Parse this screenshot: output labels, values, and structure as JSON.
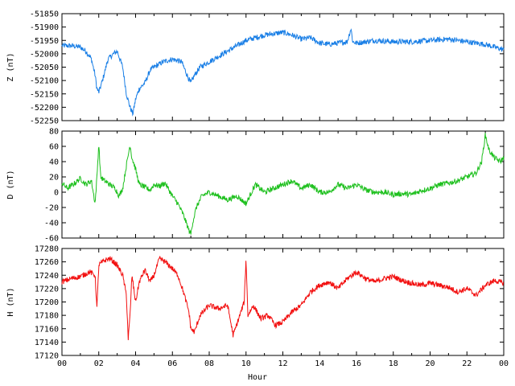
{
  "chart_data": [
    {
      "type": "line",
      "ylabel": "Z (nT)",
      "ylim": [
        -52250,
        -51850
      ],
      "yticks": [
        -51850,
        -51900,
        -51950,
        -52000,
        -52050,
        -52100,
        -52150,
        -52200,
        -52250
      ],
      "xlim": [
        0,
        24
      ],
      "color": "#1a7fe6",
      "series": [
        {
          "x": [
            0,
            0.5,
            1,
            1.3,
            1.6,
            1.8,
            1.9,
            2.0,
            2.2,
            2.5,
            2.8,
            3.0,
            3.3,
            3.5,
            3.7,
            3.85,
            4.0,
            4.2,
            4.5,
            4.8,
            5.0,
            5.5,
            6.0,
            6.5,
            6.8,
            7.0,
            7.2,
            7.5,
            8,
            8.5,
            9,
            9.5,
            10,
            10.5,
            11,
            11.5,
            12,
            12.5,
            13,
            13.5,
            14,
            14.5,
            15,
            15.5,
            15.7,
            15.8,
            16,
            16.5,
            17,
            18,
            19,
            20,
            21,
            22,
            23,
            23.5,
            24
          ],
          "y": [
            -51970,
            -51970,
            -51975,
            -51990,
            -52020,
            -52080,
            -52130,
            -52145,
            -52100,
            -52020,
            -52000,
            -51990,
            -52050,
            -52150,
            -52200,
            -52225,
            -52170,
            -52130,
            -52110,
            -52060,
            -52050,
            -52030,
            -52020,
            -52030,
            -52080,
            -52110,
            -52080,
            -52050,
            -52030,
            -52010,
            -51990,
            -51970,
            -51950,
            -51940,
            -51930,
            -51925,
            -51920,
            -51930,
            -51945,
            -51940,
            -51960,
            -51965,
            -51960,
            -51955,
            -51905,
            -51955,
            -51960,
            -51955,
            -51950,
            -51955,
            -51955,
            -51950,
            -51945,
            -51955,
            -51965,
            -51975,
            -51985
          ]
        }
      ]
    },
    {
      "type": "line",
      "ylabel": "D (nT)",
      "ylim": [
        -60,
        80
      ],
      "yticks": [
        80,
        60,
        40,
        20,
        0,
        -20,
        -40,
        -60
      ],
      "xlim": [
        0,
        24
      ],
      "color": "#1ec01e",
      "series": [
        {
          "x": [
            0,
            0.3,
            0.6,
            1.0,
            1.3,
            1.6,
            1.8,
            1.9,
            2.0,
            2.1,
            2.3,
            2.6,
            2.9,
            3.1,
            3.3,
            3.5,
            3.7,
            3.8,
            3.9,
            4.0,
            4.2,
            4.4,
            4.6,
            4.8,
            5.0,
            5.3,
            5.6,
            6.0,
            6.3,
            6.6,
            6.9,
            7.0,
            7.1,
            7.3,
            7.6,
            8,
            8.5,
            9,
            9.5,
            10,
            10.5,
            11,
            11.5,
            12,
            12.5,
            13,
            13.5,
            14,
            14.5,
            15,
            15.5,
            16,
            16.5,
            17,
            17.5,
            18,
            18.5,
            19,
            19.5,
            20,
            20.5,
            21,
            21.5,
            22,
            22.5,
            22.8,
            23.0,
            23.2,
            23.5,
            23.8,
            24
          ],
          "y": [
            12,
            5,
            10,
            18,
            10,
            15,
            -15,
            20,
            64,
            20,
            15,
            10,
            5,
            -5,
            5,
            35,
            62,
            45,
            38,
            30,
            10,
            8,
            5,
            3,
            10,
            8,
            12,
            -5,
            -15,
            -30,
            -50,
            -55,
            -40,
            -20,
            -5,
            0,
            -5,
            -10,
            -5,
            -15,
            10,
            0,
            5,
            10,
            15,
            5,
            10,
            0,
            0,
            10,
            5,
            10,
            3,
            0,
            0,
            -3,
            -2,
            -3,
            2,
            5,
            10,
            12,
            15,
            20,
            25,
            40,
            75,
            55,
            45,
            40,
            45
          ]
        }
      ]
    },
    {
      "type": "line",
      "ylabel": "H (nT)",
      "ylim": [
        17120,
        17280
      ],
      "yticks": [
        17280,
        17260,
        17240,
        17220,
        17200,
        17180,
        17160,
        17140,
        17120
      ],
      "xlim": [
        0,
        24
      ],
      "xticks": [
        "00",
        "02",
        "04",
        "06",
        "08",
        "10",
        "12",
        "14",
        "16",
        "18",
        "20",
        "22",
        "00"
      ],
      "xlabel": "Hour",
      "color": "#f20f0f",
      "series": [
        {
          "x": [
            0,
            0.5,
            1.0,
            1.5,
            1.8,
            1.9,
            2.0,
            2.3,
            2.6,
            3.0,
            3.3,
            3.5,
            3.6,
            3.7,
            3.8,
            4.0,
            4.2,
            4.5,
            4.8,
            5.0,
            5.3,
            5.6,
            6.0,
            6.3,
            6.6,
            6.9,
            7.0,
            7.2,
            7.5,
            8,
            8.5,
            9,
            9.3,
            9.6,
            9.9,
            10.0,
            10.1,
            10.4,
            10.8,
            11.2,
            11.6,
            12,
            12.5,
            13,
            13.5,
            14,
            14.5,
            15,
            15.5,
            16,
            16.5,
            17,
            17.5,
            18,
            18.5,
            19,
            19.5,
            20,
            20.5,
            21,
            21.5,
            22,
            22.5,
            23,
            23.5,
            24
          ],
          "y": [
            17230,
            17235,
            17238,
            17245,
            17240,
            17190,
            17255,
            17262,
            17265,
            17255,
            17240,
            17210,
            17145,
            17180,
            17240,
            17200,
            17230,
            17248,
            17230,
            17240,
            17265,
            17260,
            17250,
            17240,
            17215,
            17185,
            17160,
            17155,
            17180,
            17195,
            17190,
            17195,
            17150,
            17175,
            17200,
            17265,
            17180,
            17195,
            17175,
            17180,
            17165,
            17170,
            17185,
            17195,
            17215,
            17225,
            17230,
            17220,
            17235,
            17245,
            17235,
            17230,
            17235,
            17238,
            17232,
            17228,
            17225,
            17228,
            17225,
            17222,
            17215,
            17220,
            17210,
            17225,
            17232,
            17228
          ]
        }
      ]
    }
  ]
}
